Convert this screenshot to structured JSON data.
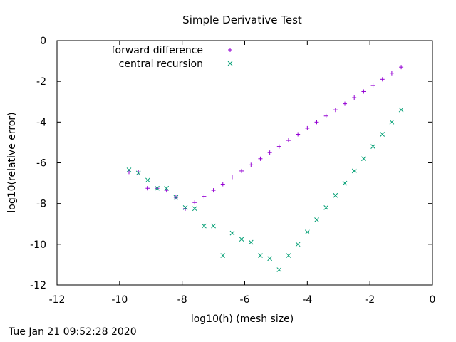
{
  "chart_data": {
    "type": "scatter",
    "title": "Simple Derivative Test",
    "xlabel": "log10(h) (mesh size)",
    "ylabel": "log10(relative error)",
    "xlim": [
      -12,
      0
    ],
    "ylim": [
      -12,
      0
    ],
    "xticks": [
      -12,
      -10,
      -8,
      -6,
      -4,
      -2,
      0
    ],
    "yticks": [
      0,
      -2,
      -4,
      -6,
      -8,
      -10,
      -12
    ],
    "grid": false,
    "legend_position": "top-left",
    "series": [
      {
        "name": "forward difference",
        "marker": "+",
        "color": "#9400d3",
        "points": [
          [
            -9.7,
            -6.45
          ],
          [
            -9.4,
            -6.45
          ],
          [
            -9.1,
            -7.25
          ],
          [
            -8.8,
            -7.25
          ],
          [
            -8.5,
            -7.35
          ],
          [
            -8.2,
            -7.7
          ],
          [
            -7.9,
            -8.25
          ],
          [
            -7.6,
            -7.95
          ],
          [
            -7.3,
            -7.65
          ],
          [
            -7.0,
            -7.35
          ],
          [
            -6.7,
            -7.05
          ],
          [
            -6.4,
            -6.7
          ],
          [
            -6.1,
            -6.4
          ],
          [
            -5.8,
            -6.1
          ],
          [
            -5.5,
            -5.8
          ],
          [
            -5.2,
            -5.5
          ],
          [
            -4.9,
            -5.2
          ],
          [
            -4.6,
            -4.9
          ],
          [
            -4.3,
            -4.6
          ],
          [
            -4.0,
            -4.3
          ],
          [
            -3.7,
            -4.0
          ],
          [
            -3.4,
            -3.7
          ],
          [
            -3.1,
            -3.4
          ],
          [
            -2.8,
            -3.1
          ],
          [
            -2.5,
            -2.8
          ],
          [
            -2.2,
            -2.5
          ],
          [
            -1.9,
            -2.2
          ],
          [
            -1.6,
            -1.9
          ],
          [
            -1.3,
            -1.6
          ],
          [
            -1.0,
            -1.3
          ]
        ]
      },
      {
        "name": "central recursion",
        "marker": "x",
        "color": "#009e73",
        "points": [
          [
            -9.7,
            -6.35
          ],
          [
            -9.4,
            -6.5
          ],
          [
            -9.1,
            -6.85
          ],
          [
            -8.8,
            -7.25
          ],
          [
            -8.5,
            -7.25
          ],
          [
            -8.2,
            -7.7
          ],
          [
            -7.9,
            -8.2
          ],
          [
            -7.6,
            -8.25
          ],
          [
            -7.3,
            -9.1
          ],
          [
            -7.0,
            -9.1
          ],
          [
            -6.7,
            -10.55
          ],
          [
            -6.4,
            -9.45
          ],
          [
            -6.1,
            -9.75
          ],
          [
            -5.8,
            -9.9
          ],
          [
            -5.5,
            -10.55
          ],
          [
            -5.2,
            -10.7
          ],
          [
            -4.9,
            -11.25
          ],
          [
            -4.6,
            -10.55
          ],
          [
            -4.3,
            -10.0
          ],
          [
            -4.0,
            -9.4
          ],
          [
            -3.7,
            -8.8
          ],
          [
            -3.4,
            -8.2
          ],
          [
            -3.1,
            -7.6
          ],
          [
            -2.8,
            -7.0
          ],
          [
            -2.5,
            -6.4
          ],
          [
            -2.2,
            -5.8
          ],
          [
            -1.9,
            -5.2
          ],
          [
            -1.6,
            -4.6
          ],
          [
            -1.3,
            -4.0
          ],
          [
            -1.0,
            -3.4
          ]
        ]
      }
    ]
  },
  "timestamp": "Tue Jan 21 09:52:28 2020"
}
